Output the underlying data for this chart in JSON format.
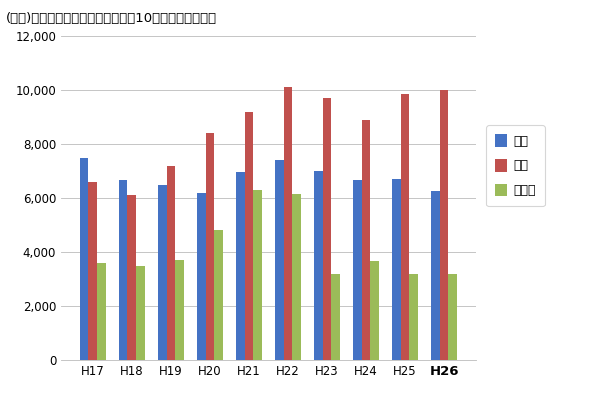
{
  "title": "(参考)年度別回収実績の推移（過去10年、単位：千台）",
  "categories": [
    "H17",
    "H18",
    "H19",
    "H20",
    "H21",
    "H22",
    "H23",
    "H24",
    "H25",
    "H26"
  ],
  "series": {
    "本体": [
      7500,
      6650,
      6500,
      6200,
      6950,
      7400,
      7000,
      6650,
      6700,
      6250
    ],
    "電池": [
      6600,
      6100,
      7200,
      8400,
      9200,
      10100,
      9700,
      8900,
      9850,
      10000
    ],
    "充電器": [
      3600,
      3500,
      3700,
      4800,
      6300,
      6150,
      3200,
      3650,
      3200,
      3200
    ]
  },
  "colors": {
    "本体": "#4472C4",
    "電池": "#C0504D",
    "充電器": "#9BBB59"
  },
  "ylim": [
    0,
    12000
  ],
  "yticks": [
    0,
    2000,
    4000,
    6000,
    8000,
    10000,
    12000
  ],
  "background_color": "#FFFFFF",
  "plot_bg_color": "#FFFFFF",
  "grid_color": "#BBBBBB",
  "title_fontsize": 9.5,
  "legend_labels": [
    "本体",
    "電池",
    "充電器"
  ]
}
